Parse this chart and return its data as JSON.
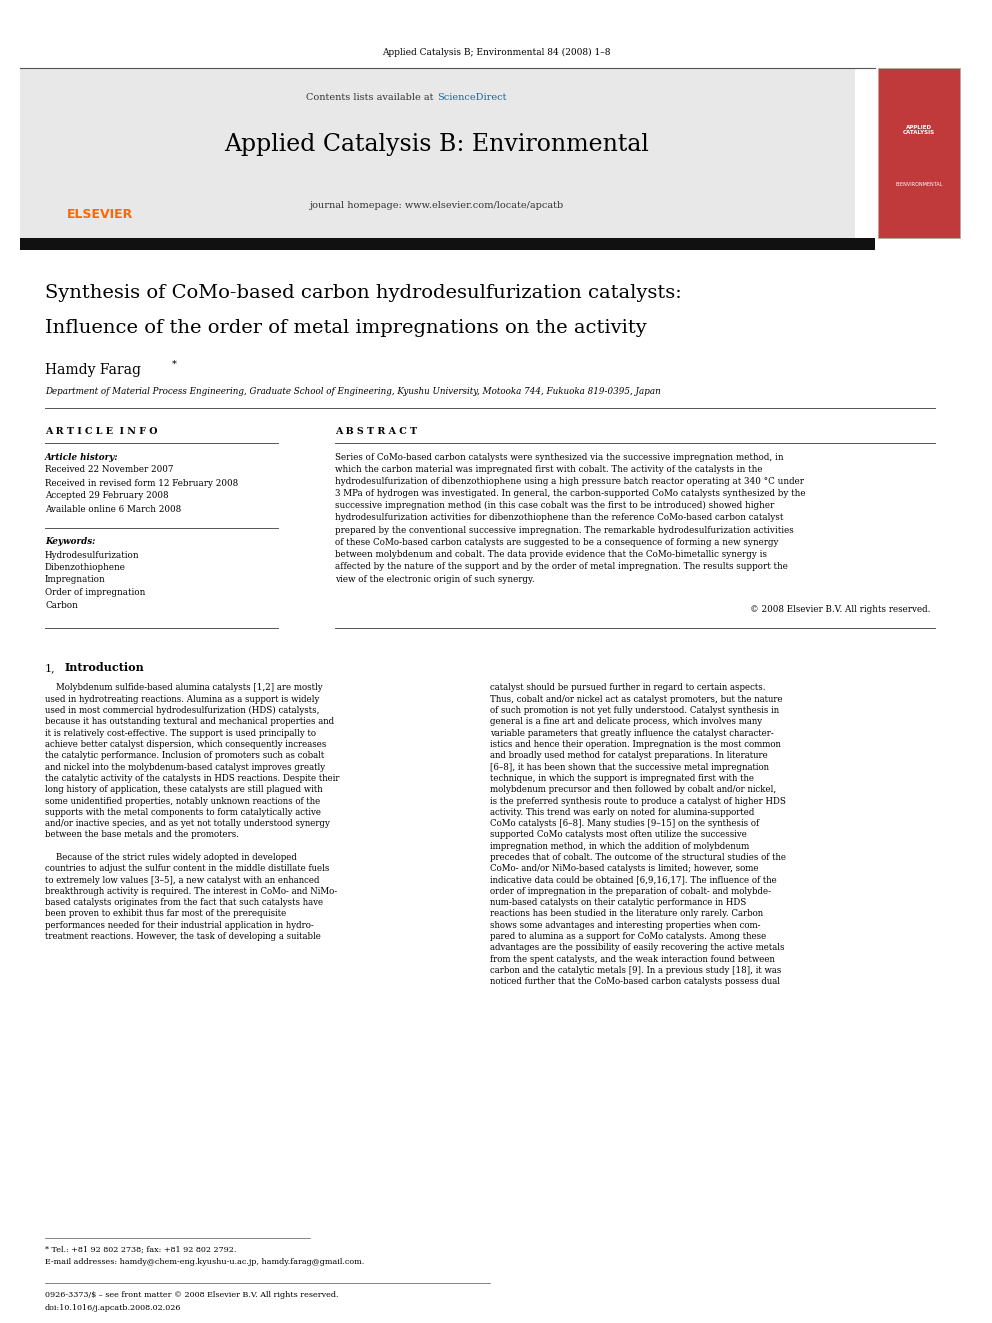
{
  "page_width": 9.92,
  "page_height": 13.23,
  "bg_color": "#ffffff",
  "header_journal": "Applied Catalysis B; Environmental 84 (2008) 1–8",
  "journal_name": "Applied Catalysis B: Environmental",
  "journal_homepage": "journal homepage: www.elsevier.com/locate/apcatb",
  "contents_text": "Contents lists available at",
  "sciencedirect_text": "ScienceDirect",
  "sciencedirect_color": "#1a6496",
  "elsevier_color": "#FF6600",
  "header_bg": "#e8e8e8",
  "dark_bar_color": "#1a1a1a",
  "paper_title_line1": "Synthesis of CoMo-based carbon hydrodesulfurization catalysts:",
  "paper_title_line2": "Influence of the order of metal impregnations on the activity",
  "author": "Hamdy Farag",
  "affiliation": "Department of Material Process Engineering, Graduate School of Engineering, Kyushu University, Motooka 744, Fukuoka 819-0395, Japan",
  "article_info_header": "A R T I C L E  I N F O",
  "abstract_header": "A B S T R A C T",
  "article_history_label": "Article history:",
  "received1": "Received 22 November 2007",
  "received2": "Received in revised form 12 February 2008",
  "accepted": "Accepted 29 February 2008",
  "available": "Available online 6 March 2008",
  "keywords_label": "Keywords:",
  "keywords": [
    "Hydrodesulfurization",
    "Dibenzothiophene",
    "Impregnation",
    "Order of impregnation",
    "Carbon"
  ],
  "copyright": "© 2008 Elsevier B.V. All rights reserved.",
  "footer_issn": "0926-3373/$ – see front matter © 2008 Elsevier B.V. All rights reserved.",
  "footer_doi": "doi:10.1016/j.apcatb.2008.02.026",
  "footnote1": "* Tel.: +81 92 802 2738; fax: +81 92 802 2792.",
  "footnote2": "E-mail addresses: hamdy@chem-eng.kyushu-u.ac.jp, hamdy.farag@gmail.com.",
  "abstract_lines": [
    "Series of CoMo-based carbon catalysts were synthesized via the successive impregnation method, in",
    "which the carbon material was impregnated first with cobalt. The activity of the catalysts in the",
    "hydrodesulfurization of dibenzothiophene using a high pressure batch reactor operating at 340 °C under",
    "3 MPa of hydrogen was investigated. In general, the carbon-supported CoMo catalysts synthesized by the",
    "successive impregnation method (in this case cobalt was the first to be introduced) showed higher",
    "hydrodesulfurization activities for dibenzothiophene than the reference CoMo-based carbon catalyst",
    "prepared by the conventional successive impregnation. The remarkable hydrodesulfurization activities",
    "of these CoMo-based carbon catalysts are suggested to be a consequence of forming a new synergy",
    "between molybdenum and cobalt. The data provide evidence that the CoMo-bimetallic synergy is",
    "affected by the nature of the support and by the order of metal impregnation. The results support the",
    "view of the electronic origin of such synergy."
  ],
  "intro_left_lines": [
    "    Molybdenum sulfide-based alumina catalysts [1,2] are mostly",
    "used in hydrotreating reactions. Alumina as a support is widely",
    "used in most commercial hydrodesulfurization (HDS) catalysts,",
    "because it has outstanding textural and mechanical properties and",
    "it is relatively cost-effective. The support is used principally to",
    "achieve better catalyst dispersion, which consequently increases",
    "the catalytic performance. Inclusion of promoters such as cobalt",
    "and nickel into the molybdenum-based catalyst improves greatly",
    "the catalytic activity of the catalysts in HDS reactions. Despite their",
    "long history of application, these catalysts are still plagued with",
    "some unidentified properties, notably unknown reactions of the",
    "supports with the metal components to form catalytically active",
    "and/or inactive species, and as yet not totally understood synergy",
    "between the base metals and the promoters.",
    "",
    "    Because of the strict rules widely adopted in developed",
    "countries to adjust the sulfur content in the middle distillate fuels",
    "to extremely low values [3–5], a new catalyst with an enhanced",
    "breakthrough activity is required. The interest in CoMo- and NiMo-",
    "based catalysts originates from the fact that such catalysts have",
    "been proven to exhibit thus far most of the prerequisite",
    "performances needed for their industrial application in hydro-",
    "treatment reactions. However, the task of developing a suitable"
  ],
  "intro_right_lines": [
    "catalyst should be pursued further in regard to certain aspects.",
    "Thus, cobalt and/or nickel act as catalyst promoters, but the nature",
    "of such promotion is not yet fully understood. Catalyst synthesis in",
    "general is a fine art and delicate process, which involves many",
    "variable parameters that greatly influence the catalyst character-",
    "istics and hence their operation. Impregnation is the most common",
    "and broadly used method for catalyst preparations. In literature",
    "[6–8], it has been shown that the successive metal impregnation",
    "technique, in which the support is impregnated first with the",
    "molybdenum precursor and then followed by cobalt and/or nickel,",
    "is the preferred synthesis route to produce a catalyst of higher HDS",
    "activity. This trend was early on noted for alumina-supported",
    "CoMo catalysts [6–8]. Many studies [9–15] on the synthesis of",
    "supported CoMo catalysts most often utilize the successive",
    "impregnation method, in which the addition of molybdenum",
    "precedes that of cobalt. The outcome of the structural studies of the",
    "CoMo- and/or NiMo-based catalysts is limited; however, some",
    "indicative data could be obtained [6,9,16,17]. The influence of the",
    "order of impregnation in the preparation of cobalt- and molybde-",
    "num-based catalysts on their catalytic performance in HDS",
    "reactions has been studied in the literature only rarely. Carbon",
    "shows some advantages and interesting properties when com-",
    "pared to alumina as a support for CoMo catalysts. Among these",
    "advantages are the possibility of easily recovering the active metals",
    "from the spent catalysts, and the weak interaction found between",
    "carbon and the catalytic metals [9]. In a previous study [18], it was",
    "noticed further that the CoMo-based carbon catalysts possess dual"
  ]
}
